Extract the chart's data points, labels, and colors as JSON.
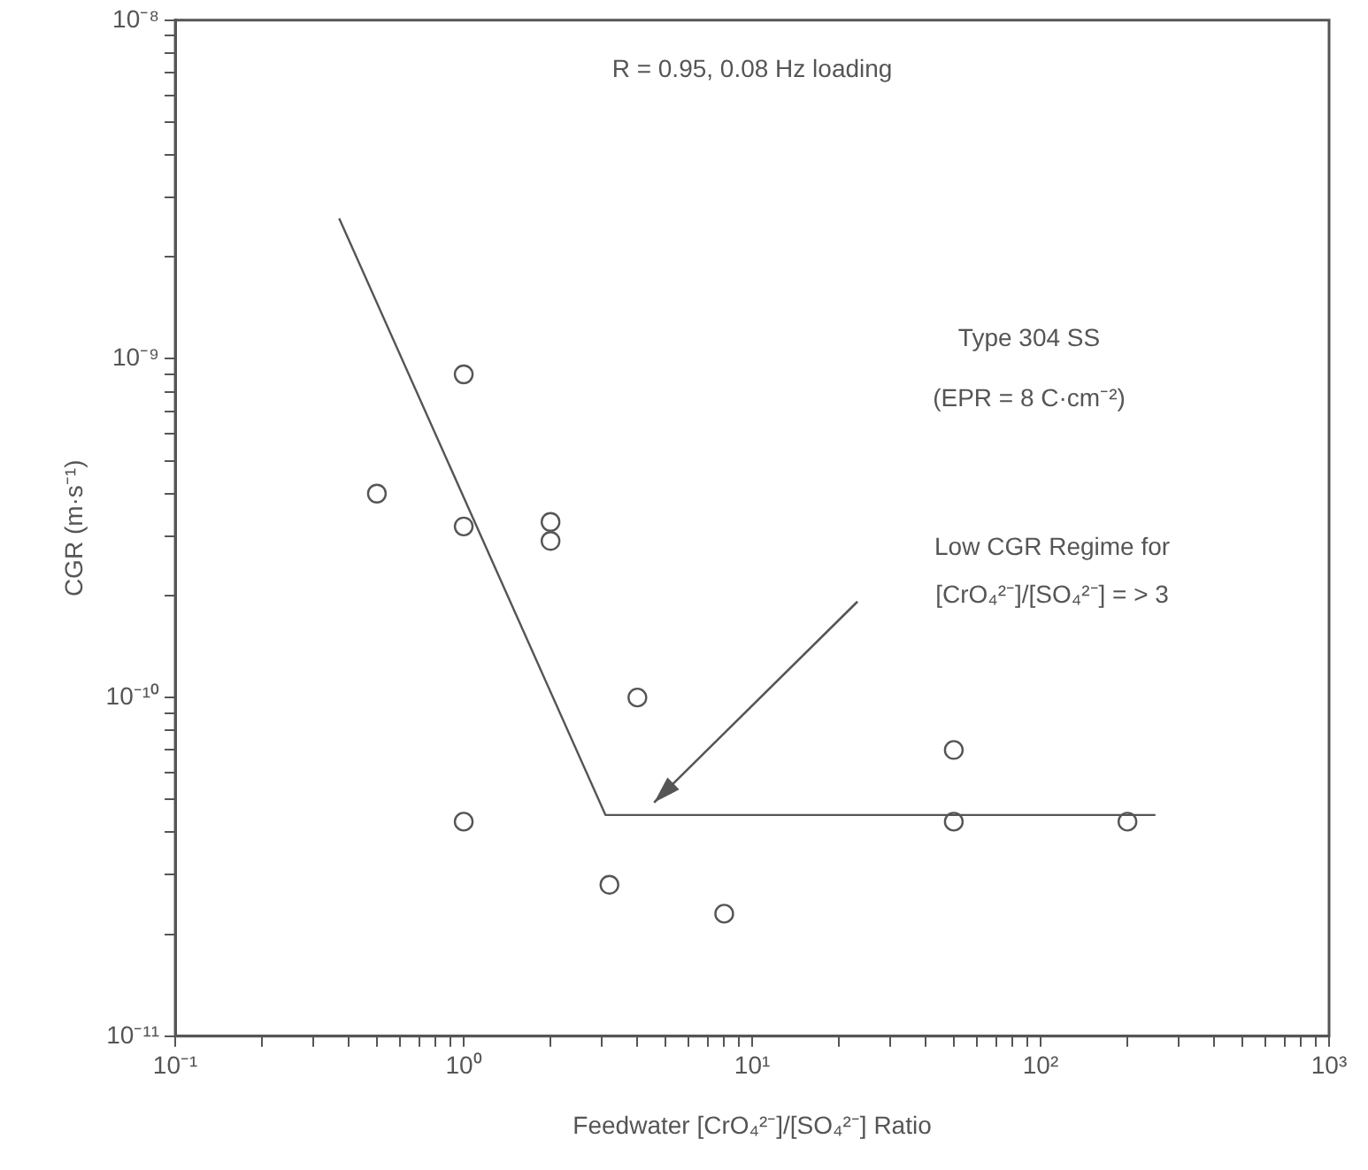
{
  "chart_data": {
    "type": "scatter",
    "title": "R = 0.95, 0.08 Hz loading",
    "xlabel": "Feedwater [CrO₄²⁻]/[SO₄²⁻] Ratio",
    "ylabel": "CGR (m·s⁻¹)",
    "log": "xy",
    "grid": false,
    "marker": "circle",
    "legend": false,
    "xlim": [
      0.1,
      1000
    ],
    "ylim": [
      1e-11,
      1e-08
    ],
    "xticks": [
      {
        "value": 0.1,
        "label": "10⁻¹"
      },
      {
        "value": 0.2,
        "label": null
      },
      {
        "value": 0.3,
        "label": null
      },
      {
        "value": 0.4,
        "label": null
      },
      {
        "value": 0.5,
        "label": null
      },
      {
        "value": 0.6,
        "label": null
      },
      {
        "value": 0.7,
        "label": null
      },
      {
        "value": 0.8,
        "label": null
      },
      {
        "value": 0.9,
        "label": null
      },
      {
        "value": 1,
        "label": "10⁰"
      },
      {
        "value": 2,
        "label": null
      },
      {
        "value": 3,
        "label": null
      },
      {
        "value": 4,
        "label": null
      },
      {
        "value": 5,
        "label": null
      },
      {
        "value": 6,
        "label": null
      },
      {
        "value": 7,
        "label": null
      },
      {
        "value": 8,
        "label": null
      },
      {
        "value": 9,
        "label": null
      },
      {
        "value": 10,
        "label": "10¹"
      },
      {
        "value": 20,
        "label": null
      },
      {
        "value": 30,
        "label": null
      },
      {
        "value": 40,
        "label": null
      },
      {
        "value": 50,
        "label": null
      },
      {
        "value": 60,
        "label": null
      },
      {
        "value": 70,
        "label": null
      },
      {
        "value": 80,
        "label": null
      },
      {
        "value": 90,
        "label": null
      },
      {
        "value": 100,
        "label": "10²"
      },
      {
        "value": 200,
        "label": null
      },
      {
        "value": 300,
        "label": null
      },
      {
        "value": 400,
        "label": null
      },
      {
        "value": 500,
        "label": null
      },
      {
        "value": 600,
        "label": null
      },
      {
        "value": 700,
        "label": null
      },
      {
        "value": 800,
        "label": null
      },
      {
        "value": 900,
        "label": null
      },
      {
        "value": 1000,
        "label": "10³"
      }
    ],
    "yticks": [
      {
        "value": 1e-11,
        "label": "10⁻¹¹"
      },
      {
        "value": 2e-11,
        "label": null
      },
      {
        "value": 3e-11,
        "label": null
      },
      {
        "value": 4e-11,
        "label": null
      },
      {
        "value": 5e-11,
        "label": null
      },
      {
        "value": 6e-11,
        "label": null
      },
      {
        "value": 7e-11,
        "label": null
      },
      {
        "value": 8e-11,
        "label": null
      },
      {
        "value": 9e-11,
        "label": null
      },
      {
        "value": 1e-10,
        "label": "10⁻¹⁰"
      },
      {
        "value": 2e-10,
        "label": null
      },
      {
        "value": 3e-10,
        "label": null
      },
      {
        "value": 4e-10,
        "label": null
      },
      {
        "value": 5e-10,
        "label": null
      },
      {
        "value": 6e-10,
        "label": null
      },
      {
        "value": 7e-10,
        "label": null
      },
      {
        "value": 8e-10,
        "label": null
      },
      {
        "value": 9e-10,
        "label": null
      },
      {
        "value": 1e-09,
        "label": "10⁻⁹"
      },
      {
        "value": 2e-09,
        "label": null
      },
      {
        "value": 3e-09,
        "label": null
      },
      {
        "value": 4e-09,
        "label": null
      },
      {
        "value": 5e-09,
        "label": null
      },
      {
        "value": 6e-09,
        "label": null
      },
      {
        "value": 7e-09,
        "label": null
      },
      {
        "value": 8e-09,
        "label": null
      },
      {
        "value": 9e-09,
        "label": null
      },
      {
        "value": 1e-08,
        "label": "10⁻⁸"
      }
    ],
    "series": [
      {
        "color": "#555555",
        "x": [
          0.5,
          1,
          1,
          1,
          2,
          2,
          4,
          3.2,
          8,
          50,
          50,
          200
        ],
        "values": [
          4e-10,
          9e-10,
          3.2e-10,
          4.3e-11,
          3.3e-10,
          2.9e-10,
          1e-10,
          2.8e-11,
          2.3e-11,
          7e-11,
          4.3e-11,
          4.3e-11
        ]
      },
      {
        "type": "line",
        "color": "#555555",
        "marker": "none",
        "x": [
          0.37,
          3.1,
          250
        ],
        "values": [
          2.6e-09,
          4.5e-11,
          4.5e-11
        ]
      }
    ],
    "annotations": [
      "Type 304 SS",
      "(EPR = 8 C·cm⁻²)",
      "Low CGR Regime for\n[CrO₄²⁻]/[SO₄²⁻] = > 3"
    ]
  }
}
